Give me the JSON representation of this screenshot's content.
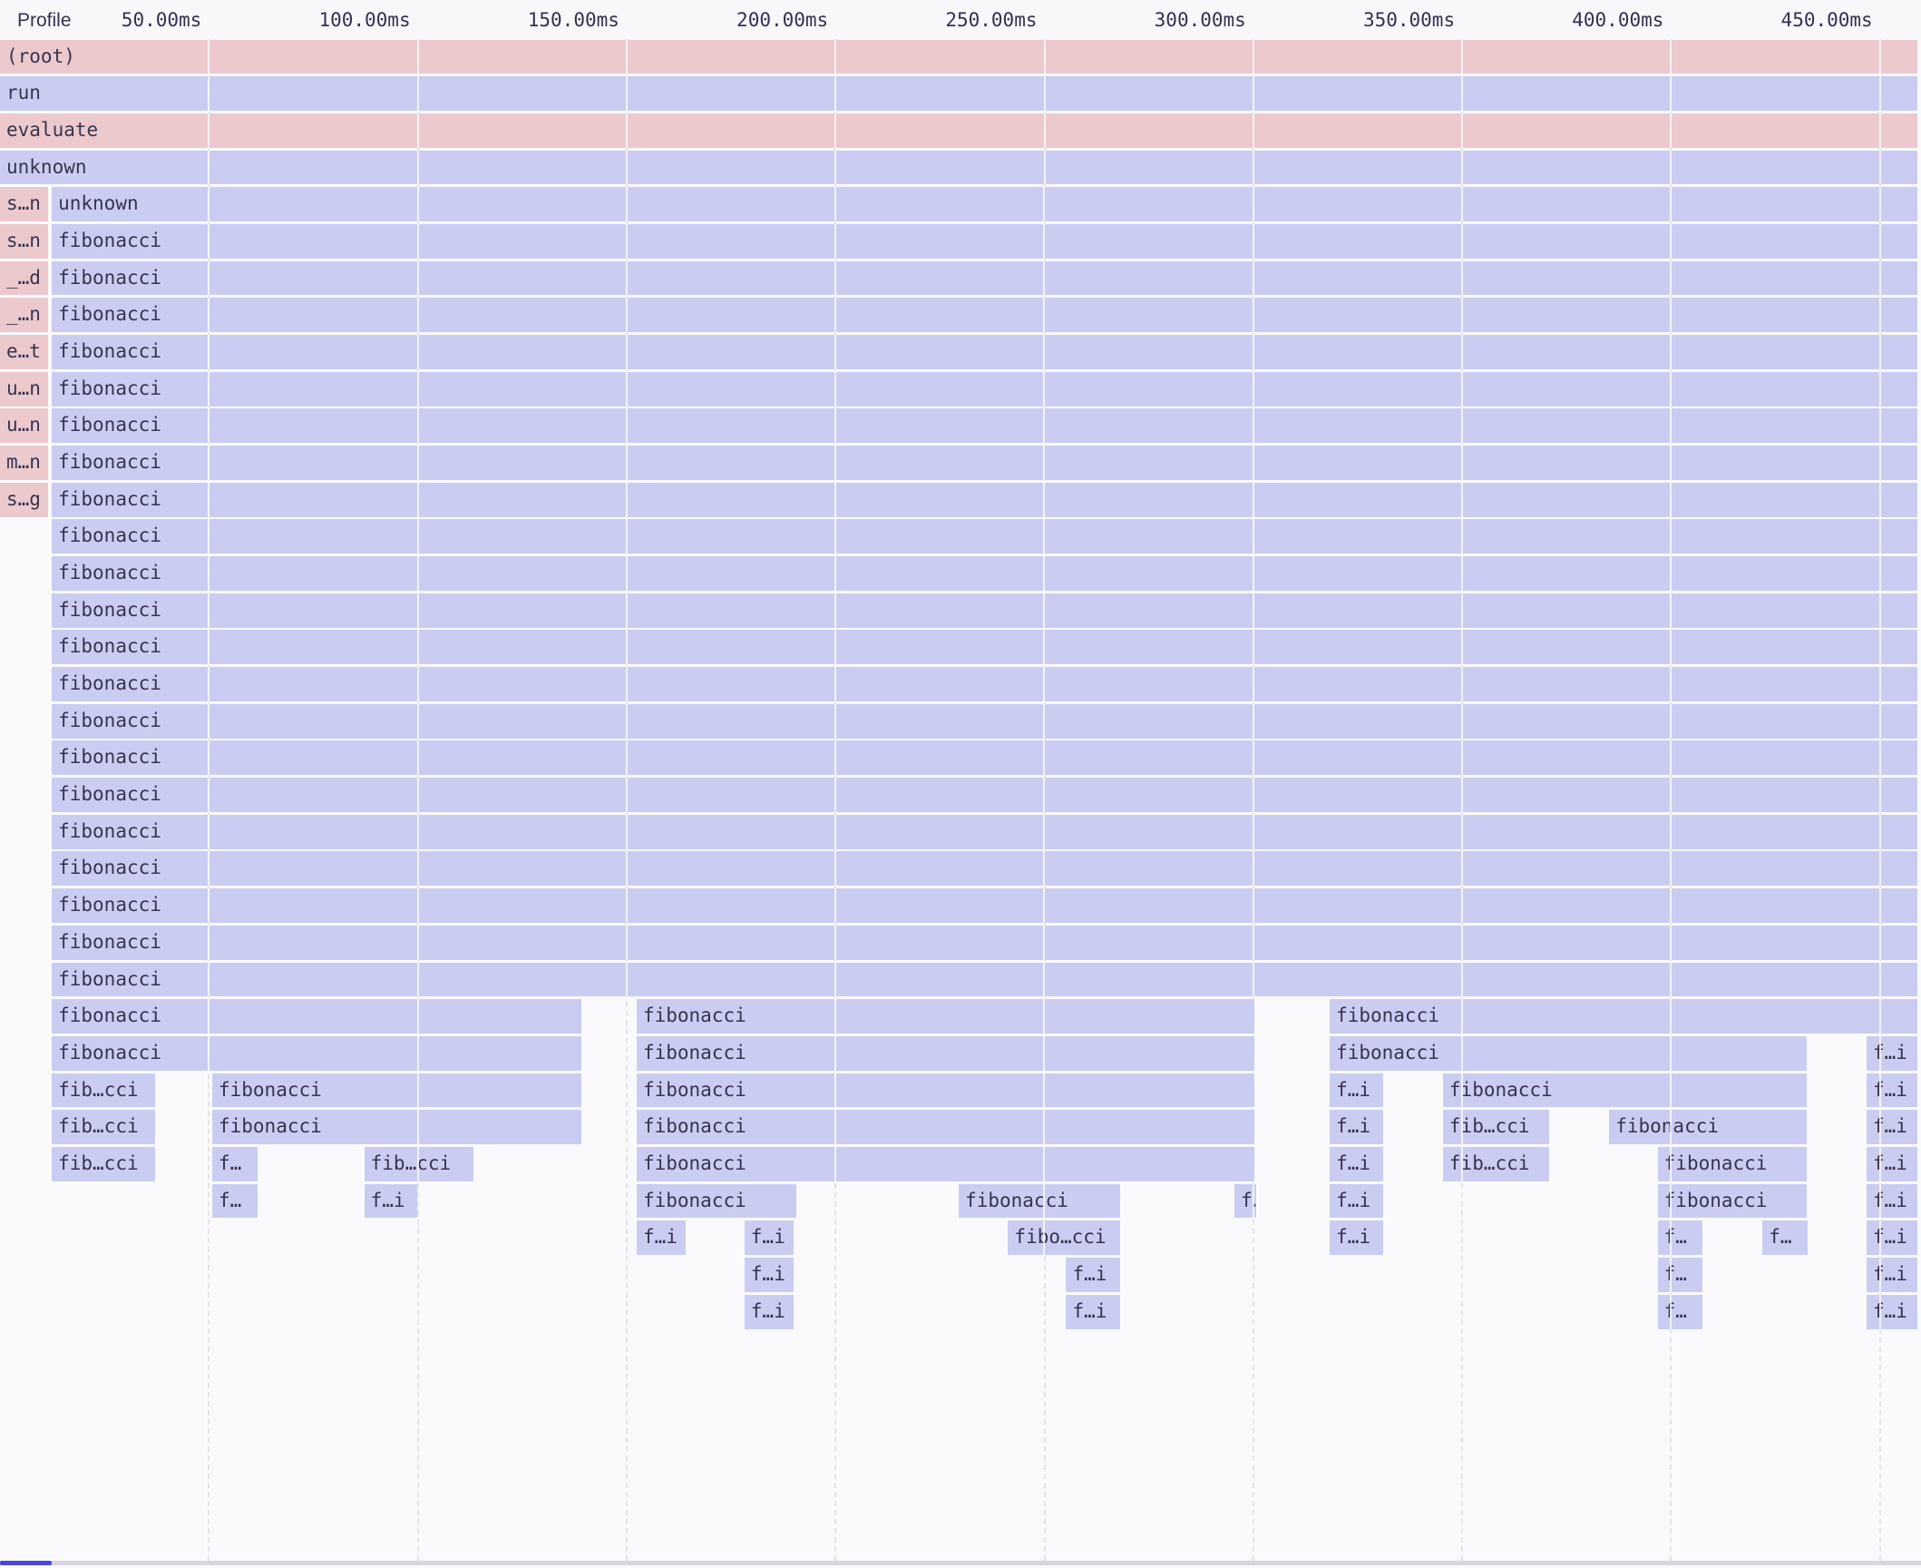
{
  "header": {
    "title": "Profile"
  },
  "time_axis": {
    "tick_interval_ms": 50,
    "ticks": [
      {
        "ms": 50,
        "label": "50.00ms"
      },
      {
        "ms": 100,
        "label": "100.00ms"
      },
      {
        "ms": 150,
        "label": "150.00ms"
      },
      {
        "ms": 200,
        "label": "200.00ms"
      },
      {
        "ms": 250,
        "label": "250.00ms"
      },
      {
        "ms": 300,
        "label": "300.00ms"
      },
      {
        "ms": 350,
        "label": "350.00ms"
      },
      {
        "ms": 400,
        "label": "400.00ms"
      },
      {
        "ms": 450,
        "label": "450.00ms"
      }
    ]
  },
  "colors": {
    "frame_pink": "#ecc9cd",
    "frame_lavender": "#cacdf1",
    "label_text": "#373450",
    "tick_text": "#343051",
    "grid_dash": "#e6e3ec",
    "grid_on_bar": "rgba(255,255,255,0.78)",
    "header_bg": "#f8f8fb",
    "page_bg": "#fafafc",
    "scroll_track": "#d9d4e1",
    "scroll_thumb": "#4b48d6"
  },
  "flame": {
    "rows": [
      {
        "frames": [
          {
            "label": "(root)",
            "color": "pink",
            "start_ms": 0,
            "end_ms": 459.2
          }
        ]
      },
      {
        "frames": [
          {
            "label": "run",
            "color": "lavender",
            "start_ms": 0,
            "end_ms": 459.2
          }
        ]
      },
      {
        "frames": [
          {
            "label": "evaluate",
            "color": "pink",
            "start_ms": 0,
            "end_ms": 459.2
          }
        ]
      },
      {
        "frames": [
          {
            "label": "unknown",
            "color": "lavender",
            "start_ms": 0,
            "end_ms": 459.2
          }
        ]
      },
      {
        "frames": [
          {
            "label": "s…n",
            "color": "pink",
            "start_ms": 0,
            "end_ms": 11.7
          },
          {
            "label": "unknown",
            "color": "lavender",
            "start_ms": 12.4,
            "end_ms": 459.2
          }
        ]
      },
      {
        "frames": [
          {
            "label": "s…n",
            "color": "pink",
            "start_ms": 0,
            "end_ms": 11.7
          },
          {
            "label": "fibonacci",
            "color": "lavender",
            "start_ms": 12.4,
            "end_ms": 459.2
          }
        ]
      },
      {
        "frames": [
          {
            "label": "_…d",
            "color": "pink",
            "start_ms": 0,
            "end_ms": 11.7
          },
          {
            "label": "fibonacci",
            "color": "lavender",
            "start_ms": 12.4,
            "end_ms": 459.2
          }
        ]
      },
      {
        "frames": [
          {
            "label": "_…n",
            "color": "pink",
            "start_ms": 0,
            "end_ms": 11.7
          },
          {
            "label": "fibonacci",
            "color": "lavender",
            "start_ms": 12.4,
            "end_ms": 459.2
          }
        ]
      },
      {
        "frames": [
          {
            "label": "e…t",
            "color": "pink",
            "start_ms": 0,
            "end_ms": 11.7
          },
          {
            "label": "fibonacci",
            "color": "lavender",
            "start_ms": 12.4,
            "end_ms": 459.2
          }
        ]
      },
      {
        "frames": [
          {
            "label": "u…n",
            "color": "pink",
            "start_ms": 0,
            "end_ms": 11.7
          },
          {
            "label": "fibonacci",
            "color": "lavender",
            "start_ms": 12.4,
            "end_ms": 459.2
          }
        ]
      },
      {
        "frames": [
          {
            "label": "u…n",
            "color": "pink",
            "start_ms": 0,
            "end_ms": 11.7
          },
          {
            "label": "fibonacci",
            "color": "lavender",
            "start_ms": 12.4,
            "end_ms": 459.2
          }
        ]
      },
      {
        "frames": [
          {
            "label": "m…n",
            "color": "pink",
            "start_ms": 0,
            "end_ms": 11.7
          },
          {
            "label": "fibonacci",
            "color": "lavender",
            "start_ms": 12.4,
            "end_ms": 459.2
          }
        ]
      },
      {
        "frames": [
          {
            "label": "s…g",
            "color": "pink",
            "start_ms": 0,
            "end_ms": 11.7
          },
          {
            "label": "fibonacci",
            "color": "lavender",
            "start_ms": 12.4,
            "end_ms": 459.2
          }
        ]
      },
      {
        "frames": [
          {
            "label": "fibonacci",
            "color": "lavender",
            "start_ms": 12.4,
            "end_ms": 459.2
          }
        ]
      },
      {
        "frames": [
          {
            "label": "fibonacci",
            "color": "lavender",
            "start_ms": 12.4,
            "end_ms": 459.2
          }
        ]
      },
      {
        "frames": [
          {
            "label": "fibonacci",
            "color": "lavender",
            "start_ms": 12.4,
            "end_ms": 459.2
          }
        ]
      },
      {
        "frames": [
          {
            "label": "fibonacci",
            "color": "lavender",
            "start_ms": 12.4,
            "end_ms": 459.2
          }
        ]
      },
      {
        "frames": [
          {
            "label": "fibonacci",
            "color": "lavender",
            "start_ms": 12.4,
            "end_ms": 459.2
          }
        ]
      },
      {
        "frames": [
          {
            "label": "fibonacci",
            "color": "lavender",
            "start_ms": 12.4,
            "end_ms": 459.2
          }
        ]
      },
      {
        "frames": [
          {
            "label": "fibonacci",
            "color": "lavender",
            "start_ms": 12.4,
            "end_ms": 459.2
          }
        ]
      },
      {
        "frames": [
          {
            "label": "fibonacci",
            "color": "lavender",
            "start_ms": 12.4,
            "end_ms": 459.2
          }
        ]
      },
      {
        "frames": [
          {
            "label": "fibonacci",
            "color": "lavender",
            "start_ms": 12.4,
            "end_ms": 459.2
          }
        ]
      },
      {
        "frames": [
          {
            "label": "fibonacci",
            "color": "lavender",
            "start_ms": 12.4,
            "end_ms": 459.2
          }
        ]
      },
      {
        "frames": [
          {
            "label": "fibonacci",
            "color": "lavender",
            "start_ms": 12.4,
            "end_ms": 459.2
          }
        ]
      },
      {
        "frames": [
          {
            "label": "fibonacci",
            "color": "lavender",
            "start_ms": 12.4,
            "end_ms": 459.2
          }
        ]
      },
      {
        "frames": [
          {
            "label": "fibonacci",
            "color": "lavender",
            "start_ms": 12.4,
            "end_ms": 459.2
          }
        ]
      },
      {
        "frames": [
          {
            "label": "fibonacci",
            "color": "lavender",
            "start_ms": 12.4,
            "end_ms": 139.3
          },
          {
            "label": "fibonacci",
            "color": "lavender",
            "start_ms": 152.4,
            "end_ms": 300.4
          },
          {
            "label": "fibonacci",
            "color": "lavender",
            "start_ms": 318.3,
            "end_ms": 459.2
          }
        ]
      },
      {
        "frames": [
          {
            "label": "fibonacci",
            "color": "lavender",
            "start_ms": 12.4,
            "end_ms": 139.3
          },
          {
            "label": "fibonacci",
            "color": "lavender",
            "start_ms": 152.4,
            "end_ms": 300.4
          },
          {
            "label": "fibonacci",
            "color": "lavender",
            "start_ms": 318.3,
            "end_ms": 432.7
          },
          {
            "label": "f…i",
            "color": "lavender",
            "start_ms": 446.8,
            "end_ms": 459.2
          }
        ]
      },
      {
        "frames": [
          {
            "label": "fib…cci",
            "color": "lavender",
            "start_ms": 12.4,
            "end_ms": 37.3
          },
          {
            "label": "fibonacci",
            "color": "lavender",
            "start_ms": 50.8,
            "end_ms": 139.3
          },
          {
            "label": "fibonacci",
            "color": "lavender",
            "start_ms": 152.4,
            "end_ms": 300.4
          },
          {
            "label": "f…i",
            "color": "lavender",
            "start_ms": 318.3,
            "end_ms": 331.3
          },
          {
            "label": "fibonacci",
            "color": "lavender",
            "start_ms": 345.4,
            "end_ms": 432.7
          },
          {
            "label": "f…i",
            "color": "lavender",
            "start_ms": 446.8,
            "end_ms": 459.2
          }
        ]
      },
      {
        "frames": [
          {
            "label": "fib…cci",
            "color": "lavender",
            "start_ms": 12.4,
            "end_ms": 37.3
          },
          {
            "label": "fibonacci",
            "color": "lavender",
            "start_ms": 50.8,
            "end_ms": 139.3
          },
          {
            "label": "fibonacci",
            "color": "lavender",
            "start_ms": 152.4,
            "end_ms": 300.4
          },
          {
            "label": "f…i",
            "color": "lavender",
            "start_ms": 318.3,
            "end_ms": 331.3
          },
          {
            "label": "fib…cci",
            "color": "lavender",
            "start_ms": 345.4,
            "end_ms": 371.1
          },
          {
            "label": "fibonacci",
            "color": "lavender",
            "start_ms": 385.2,
            "end_ms": 432.7
          },
          {
            "label": "f…i",
            "color": "lavender",
            "start_ms": 446.8,
            "end_ms": 459.2
          }
        ]
      },
      {
        "frames": [
          {
            "label": "fib…cci",
            "color": "lavender",
            "start_ms": 12.4,
            "end_ms": 37.3
          },
          {
            "label": "f…",
            "color": "lavender",
            "start_ms": 50.8,
            "end_ms": 61.8
          },
          {
            "label": "fib…cci",
            "color": "lavender",
            "start_ms": 87.2,
            "end_ms": 113.5
          },
          {
            "label": "fibonacci",
            "color": "lavender",
            "start_ms": 152.4,
            "end_ms": 300.4
          },
          {
            "label": "f…i",
            "color": "lavender",
            "start_ms": 318.3,
            "end_ms": 331.3
          },
          {
            "label": "fib…cci",
            "color": "lavender",
            "start_ms": 345.4,
            "end_ms": 371.1
          },
          {
            "label": "fibonacci",
            "color": "lavender",
            "start_ms": 396.8,
            "end_ms": 432.7
          },
          {
            "label": "f…i",
            "color": "lavender",
            "start_ms": 446.8,
            "end_ms": 459.2
          }
        ]
      },
      {
        "frames": [
          {
            "label": "f…",
            "color": "lavender",
            "start_ms": 50.8,
            "end_ms": 61.8
          },
          {
            "label": "f…i",
            "color": "lavender",
            "start_ms": 87.2,
            "end_ms": 100.1
          },
          {
            "label": "fibonacci",
            "color": "lavender",
            "start_ms": 152.4,
            "end_ms": 190.8
          },
          {
            "label": "fibonacci",
            "color": "lavender",
            "start_ms": 229.5,
            "end_ms": 268.3
          },
          {
            "label": "f…",
            "color": "lavender",
            "start_ms": 295.5,
            "end_ms": 300.9
          },
          {
            "label": "f…i",
            "color": "lavender",
            "start_ms": 318.3,
            "end_ms": 331.3
          },
          {
            "label": "fibonacci",
            "color": "lavender",
            "start_ms": 396.8,
            "end_ms": 432.7
          },
          {
            "label": "f…i",
            "color": "lavender",
            "start_ms": 446.8,
            "end_ms": 459.2
          }
        ]
      },
      {
        "frames": [
          {
            "label": "f…i",
            "color": "lavender",
            "start_ms": 152.4,
            "end_ms": 164.3
          },
          {
            "label": "f…i",
            "color": "lavender",
            "start_ms": 178.2,
            "end_ms": 190.2
          },
          {
            "label": "fibo…cci",
            "color": "lavender",
            "start_ms": 241.3,
            "end_ms": 268.3
          },
          {
            "label": "f…i",
            "color": "lavender",
            "start_ms": 318.3,
            "end_ms": 331.3
          },
          {
            "label": "f…",
            "color": "lavender",
            "start_ms": 396.8,
            "end_ms": 407.7
          },
          {
            "label": "f…",
            "color": "lavender",
            "start_ms": 421.9,
            "end_ms": 432.9
          },
          {
            "label": "f…i",
            "color": "lavender",
            "start_ms": 446.8,
            "end_ms": 459.2
          }
        ]
      },
      {
        "frames": [
          {
            "label": "f…i",
            "color": "lavender",
            "start_ms": 178.2,
            "end_ms": 190.2
          },
          {
            "label": "f…i",
            "color": "lavender",
            "start_ms": 255.2,
            "end_ms": 268.3
          },
          {
            "label": "f…",
            "color": "lavender",
            "start_ms": 396.8,
            "end_ms": 407.7
          },
          {
            "label": "f…i",
            "color": "lavender",
            "start_ms": 446.8,
            "end_ms": 459.2
          }
        ]
      },
      {
        "frames": [
          {
            "label": "f…i",
            "color": "lavender",
            "start_ms": 178.2,
            "end_ms": 190.2
          },
          {
            "label": "f…i",
            "color": "lavender",
            "start_ms": 255.2,
            "end_ms": 268.3
          },
          {
            "label": "f…",
            "color": "lavender",
            "start_ms": 396.8,
            "end_ms": 407.7
          },
          {
            "label": "f…i",
            "color": "lavender",
            "start_ms": 446.8,
            "end_ms": 459.2
          }
        ]
      }
    ]
  }
}
